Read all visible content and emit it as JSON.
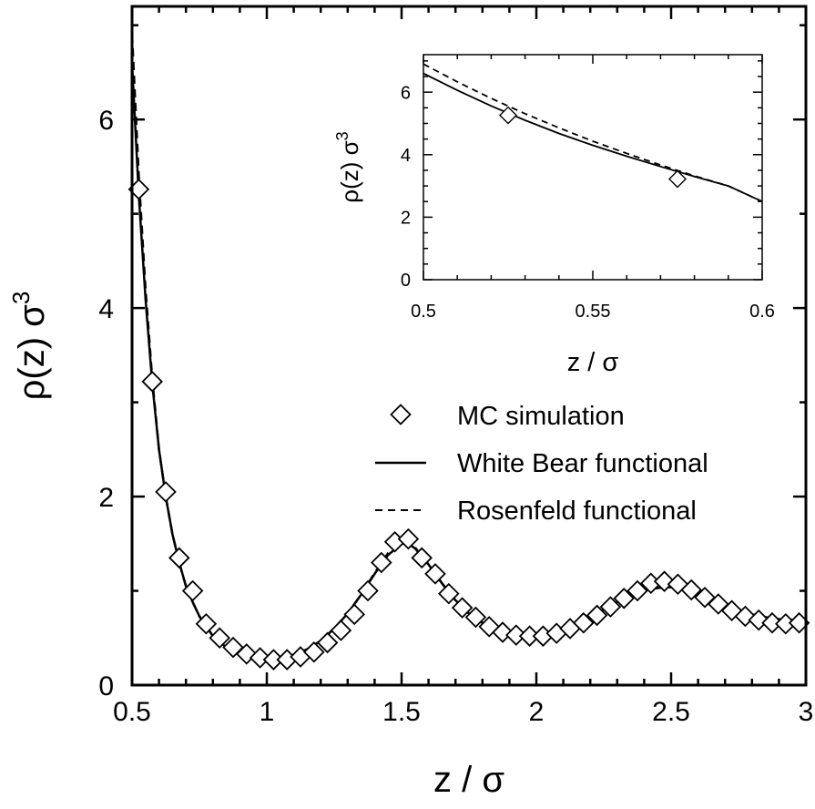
{
  "chart_data": [
    {
      "type": "line",
      "xlabel": "z / σ",
      "ylabel_main": "ρ(z) σ",
      "ylabel_sup": "3",
      "xlim": [
        0.5,
        3.0
      ],
      "ylim": [
        0,
        7.2
      ],
      "xticks": [
        0.5,
        1.0,
        1.5,
        2.0,
        2.5,
        3.0
      ],
      "xtick_labels": [
        "0.5",
        "1",
        "1.5",
        "2",
        "2.5",
        "3"
      ],
      "yticks": [
        0,
        2,
        4,
        6
      ],
      "ytick_labels": [
        "0",
        "2",
        "4",
        "6"
      ],
      "legend_position": "center-right",
      "series": [
        {
          "name": "MC simulation",
          "style": "diamond-markers",
          "x": [
            0.525,
            0.575,
            0.625,
            0.675,
            0.725,
            0.775,
            0.825,
            0.875,
            0.925,
            0.975,
            1.025,
            1.075,
            1.125,
            1.175,
            1.225,
            1.275,
            1.325,
            1.375,
            1.425,
            1.475,
            1.525,
            1.575,
            1.625,
            1.675,
            1.725,
            1.775,
            1.825,
            1.875,
            1.925,
            1.975,
            2.025,
            2.075,
            2.125,
            2.175,
            2.225,
            2.275,
            2.325,
            2.375,
            2.425,
            2.475,
            2.525,
            2.575,
            2.625,
            2.675,
            2.725,
            2.775,
            2.825,
            2.875,
            2.925,
            2.975
          ],
          "y": [
            5.26,
            3.22,
            2.05,
            1.35,
            1.0,
            0.65,
            0.5,
            0.4,
            0.33,
            0.29,
            0.27,
            0.27,
            0.3,
            0.35,
            0.45,
            0.58,
            0.75,
            1.0,
            1.3,
            1.52,
            1.55,
            1.35,
            1.18,
            0.97,
            0.82,
            0.72,
            0.62,
            0.56,
            0.53,
            0.52,
            0.52,
            0.55,
            0.6,
            0.66,
            0.74,
            0.83,
            0.92,
            1.0,
            1.08,
            1.1,
            1.07,
            1.01,
            0.93,
            0.86,
            0.79,
            0.73,
            0.69,
            0.66,
            0.65,
            0.66
          ]
        },
        {
          "name": "White Bear functional",
          "style": "solid",
          "x": [
            0.5,
            0.525,
            0.55,
            0.575,
            0.6,
            0.625,
            0.65,
            0.675,
            0.7,
            0.725,
            0.75,
            0.8,
            0.85,
            0.9,
            0.95,
            1.0,
            1.05,
            1.1,
            1.15,
            1.2,
            1.25,
            1.3,
            1.35,
            1.4,
            1.45,
            1.5,
            1.525,
            1.55,
            1.6,
            1.65,
            1.7,
            1.75,
            1.8,
            1.85,
            1.9,
            1.95,
            2.0,
            2.05,
            2.1,
            2.15,
            2.2,
            2.25,
            2.3,
            2.35,
            2.4,
            2.45,
            2.5,
            2.55,
            2.6,
            2.65,
            2.7,
            2.75,
            2.8,
            2.85,
            2.9,
            2.95,
            3.0
          ],
          "y": [
            6.6,
            5.2,
            4.1,
            3.2,
            2.5,
            2.0,
            1.6,
            1.3,
            1.05,
            0.88,
            0.73,
            0.52,
            0.4,
            0.33,
            0.29,
            0.28,
            0.29,
            0.32,
            0.38,
            0.47,
            0.6,
            0.76,
            0.96,
            1.18,
            1.38,
            1.5,
            1.5,
            1.45,
            1.28,
            1.08,
            0.9,
            0.76,
            0.66,
            0.59,
            0.55,
            0.54,
            0.54,
            0.56,
            0.6,
            0.65,
            0.72,
            0.8,
            0.88,
            0.95,
            1.0,
            1.03,
            1.04,
            1.02,
            0.97,
            0.91,
            0.85,
            0.8,
            0.75,
            0.72,
            0.7,
            0.69,
            0.69
          ]
        },
        {
          "name": "Rosenfeld functional",
          "style": "dashed",
          "x": [
            0.5,
            0.525,
            0.55,
            0.575,
            0.6,
            0.625,
            0.65,
            0.675,
            0.7,
            0.725,
            0.75,
            0.8,
            0.85,
            0.9,
            0.95,
            1.0,
            1.05,
            1.1,
            1.15,
            1.2,
            1.25,
            1.3,
            1.35,
            1.4,
            1.45,
            1.5,
            1.525,
            1.55,
            1.6,
            1.65,
            1.7,
            1.75,
            1.8,
            1.85,
            1.9,
            1.95,
            2.0,
            2.05,
            2.1,
            2.15,
            2.2,
            2.25,
            2.3,
            2.35,
            2.4,
            2.45,
            2.5,
            2.55,
            2.6,
            2.65,
            2.7,
            2.75,
            2.8,
            2.85,
            2.9,
            2.95,
            3.0
          ],
          "y": [
            6.9,
            5.4,
            4.2,
            3.25,
            2.5,
            2.0,
            1.6,
            1.3,
            1.05,
            0.88,
            0.73,
            0.52,
            0.4,
            0.33,
            0.29,
            0.28,
            0.29,
            0.32,
            0.38,
            0.47,
            0.6,
            0.76,
            0.96,
            1.19,
            1.4,
            1.52,
            1.52,
            1.46,
            1.28,
            1.08,
            0.9,
            0.76,
            0.66,
            0.59,
            0.55,
            0.54,
            0.54,
            0.56,
            0.6,
            0.65,
            0.72,
            0.8,
            0.88,
            0.95,
            1.0,
            1.03,
            1.04,
            1.02,
            0.97,
            0.91,
            0.85,
            0.8,
            0.75,
            0.72,
            0.7,
            0.69,
            0.69
          ]
        }
      ]
    },
    {
      "type": "line",
      "role": "inset",
      "xlabel": "z / σ",
      "ylabel_main": "ρ(z) σ",
      "ylabel_sup": "3",
      "xlim": [
        0.5,
        0.6
      ],
      "ylim": [
        0,
        7.2
      ],
      "xticks": [
        0.5,
        0.55,
        0.6
      ],
      "xtick_labels": [
        "0.5",
        "0.55",
        "0.6"
      ],
      "yticks": [
        0,
        2,
        4,
        6
      ],
      "ytick_labels": [
        "0",
        "2",
        "4",
        "6"
      ],
      "series": [
        {
          "name": "MC simulation",
          "style": "diamond-markers",
          "x": [
            0.525,
            0.575
          ],
          "y": [
            5.26,
            3.22
          ]
        },
        {
          "name": "White Bear functional",
          "style": "solid",
          "x": [
            0.5,
            0.51,
            0.52,
            0.53,
            0.54,
            0.55,
            0.56,
            0.57,
            0.58,
            0.59,
            0.6
          ],
          "y": [
            6.6,
            6.06,
            5.56,
            5.1,
            4.68,
            4.3,
            3.95,
            3.62,
            3.3,
            3.0,
            2.5
          ]
        },
        {
          "name": "Rosenfeld functional",
          "style": "dashed",
          "x": [
            0.5,
            0.51,
            0.52,
            0.53,
            0.54,
            0.55,
            0.56,
            0.57,
            0.58,
            0.59,
            0.6
          ],
          "y": [
            6.9,
            6.33,
            5.8,
            5.31,
            4.86,
            4.43,
            4.04,
            3.67,
            3.32,
            3.0,
            2.5
          ]
        }
      ]
    }
  ]
}
